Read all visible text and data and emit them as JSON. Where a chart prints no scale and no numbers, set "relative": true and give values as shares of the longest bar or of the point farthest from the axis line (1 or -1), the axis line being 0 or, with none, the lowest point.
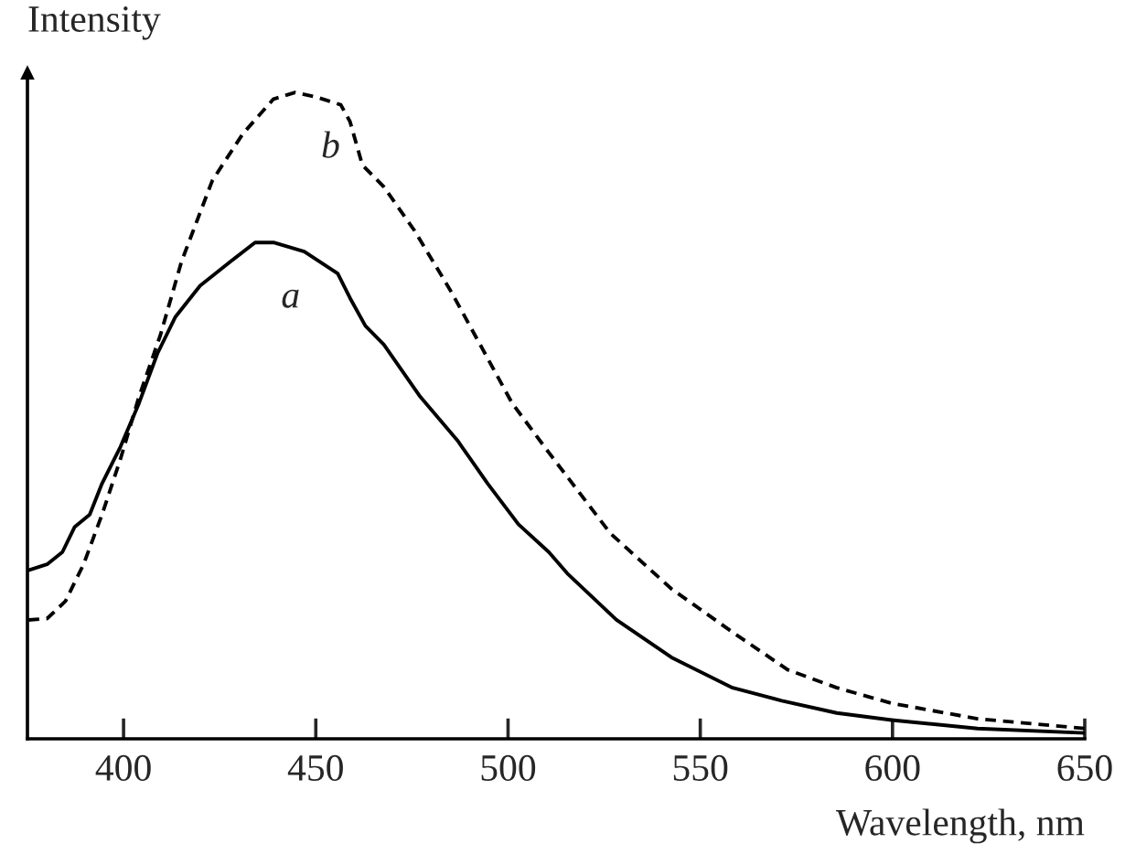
{
  "chart_data": {
    "type": "line",
    "relative": true,
    "xlabel": "Wavelength, nm",
    "ylabel": "Intensity",
    "xlim": [
      375,
      650
    ],
    "xticks": [
      400,
      450,
      500,
      550,
      600,
      650
    ],
    "grid": false,
    "legend": false,
    "marker": "none",
    "series": [
      {
        "name": "a",
        "color": "#000000",
        "line_style": "solid",
        "x": [
          375.3,
          380.1,
          384.1,
          387.3,
          391.2,
          394.4,
          399.2,
          404,
          408.8,
          413.5,
          419.9,
          427.9,
          434.2,
          439,
          447,
          455.7,
          458.9,
          462.9,
          467.7,
          477.2,
          486.8,
          494.7,
          502.7,
          510.6,
          515.4,
          528.2,
          542.5,
          558.4,
          571.2,
          585.5,
          599.8,
          622.1,
          650
        ],
        "values": [
          0.261,
          0.27,
          0.289,
          0.328,
          0.347,
          0.395,
          0.452,
          0.519,
          0.596,
          0.653,
          0.701,
          0.739,
          0.768,
          0.768,
          0.754,
          0.72,
          0.682,
          0.639,
          0.61,
          0.529,
          0.462,
          0.395,
          0.332,
          0.289,
          0.256,
          0.184,
          0.126,
          0.079,
          0.059,
          0.04,
          0.029,
          0.016,
          0.009
        ]
      },
      {
        "name": "b",
        "color": "#000000",
        "line_style": "dashed",
        "x": [
          375.3,
          380.1,
          384.9,
          389.6,
          394.4,
          399.2,
          404,
          409.6,
          415.1,
          423.1,
          431,
          439,
          444.6,
          450.2,
          456.5,
          458.9,
          462.1,
          467.7,
          475.6,
          485.2,
          493.2,
          501.1,
          510.6,
          526.6,
          542.5,
          558.4,
          572.7,
          585.5,
          599.8,
          622.1,
          650
        ],
        "values": [
          0.184,
          0.186,
          0.213,
          0.27,
          0.347,
          0.433,
          0.529,
          0.625,
          0.739,
          0.864,
          0.936,
          0.99,
          1.0,
          0.993,
          0.981,
          0.955,
          0.888,
          0.854,
          0.787,
          0.692,
          0.605,
          0.519,
          0.443,
          0.318,
          0.232,
          0.165,
          0.107,
          0.079,
          0.055,
          0.031,
          0.016
        ]
      }
    ]
  }
}
